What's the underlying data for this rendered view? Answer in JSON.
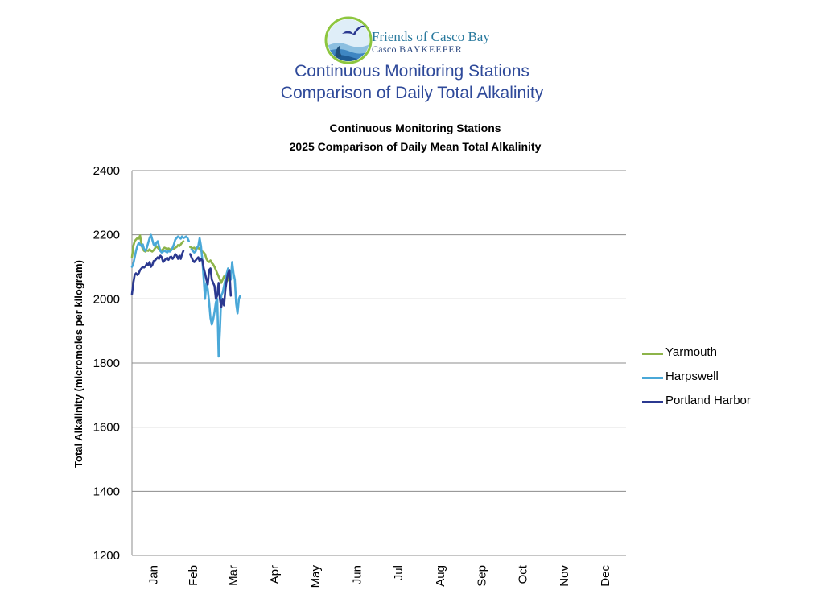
{
  "header": {
    "logo": {
      "name": "Friends of Casco Bay",
      "sub_prefix": "Casco ",
      "sub_emphasis": "BAYKEEPER",
      "ring_color": "#8dc63f"
    },
    "title_line1": "Continuous Monitoring Stations",
    "title_line2": "Comparison of Daily Total Alkalinity"
  },
  "chart_data": {
    "type": "line",
    "title_line1": "Continuous Monitoring Stations",
    "title_line2": "2025 Comparison of Daily Mean Total Alkalinity",
    "xlabel": "",
    "ylabel": "Total Alkalinity (micromoles per kilogram)",
    "ylim": [
      1200,
      2400
    ],
    "yticks": [
      1200,
      1400,
      1600,
      1800,
      2000,
      2200,
      2400
    ],
    "xlim": [
      1,
      366
    ],
    "month_labels": [
      "Jan",
      "Feb",
      "Mar",
      "Apr",
      "May",
      "Jun",
      "Jul",
      "Aug",
      "Sep",
      "Oct",
      "Nov",
      "Dec"
    ],
    "grid": "horizontal",
    "legend_position": "right",
    "series": [
      {
        "name": "Yarmouth",
        "color": "#8db44a",
        "segments": [
          [
            [
              1,
              2130
            ],
            [
              2,
              2165
            ],
            [
              3,
              2180
            ],
            [
              4,
              2185
            ],
            [
              5,
              2190
            ],
            [
              6,
              2188
            ],
            [
              7,
              2198
            ],
            [
              8,
              2170
            ],
            [
              9,
              2155
            ],
            [
              10,
              2150
            ],
            [
              11,
              2148
            ],
            [
              12,
              2152
            ],
            [
              13,
              2150
            ],
            [
              14,
              2155
            ],
            [
              15,
              2150
            ],
            [
              16,
              2148
            ],
            [
              17,
              2152
            ],
            [
              18,
              2158
            ],
            [
              19,
              2165
            ],
            [
              20,
              2160
            ],
            [
              21,
              2155
            ],
            [
              22,
              2150
            ],
            [
              23,
              2152
            ],
            [
              24,
              2156
            ],
            [
              25,
              2160
            ],
            [
              26,
              2158
            ],
            [
              27,
              2155
            ],
            [
              28,
              2158
            ],
            [
              29,
              2155
            ],
            [
              30,
              2152
            ],
            [
              31,
              2158
            ],
            [
              32,
              2155
            ],
            [
              33,
              2160
            ],
            [
              34,
              2162
            ],
            [
              35,
              2168
            ],
            [
              36,
              2165
            ],
            [
              37,
              2170
            ],
            [
              38,
              2175
            ],
            [
              39,
              2180
            ]
          ],
          [
            [
              44,
              2162
            ],
            [
              45,
              2160
            ],
            [
              46,
              2158
            ],
            [
              47,
              2160
            ],
            [
              48,
              2155
            ],
            [
              49,
              2158
            ],
            [
              50,
              2160
            ],
            [
              51,
              2155
            ],
            [
              52,
              2150
            ],
            [
              53,
              2148
            ],
            [
              54,
              2145
            ],
            [
              55,
              2140
            ],
            [
              56,
              2125
            ],
            [
              57,
              2118
            ],
            [
              58,
              2115
            ],
            [
              59,
              2120
            ],
            [
              60,
              2112
            ],
            [
              61,
              2108
            ],
            [
              62,
              2100
            ],
            [
              63,
              2090
            ],
            [
              64,
              2080
            ],
            [
              65,
              2070
            ],
            [
              66,
              2060
            ],
            [
              67,
              2050
            ],
            [
              68,
              2060
            ],
            [
              69,
              2070
            ],
            [
              70,
              2065
            ],
            [
              71,
              2055
            ],
            [
              72,
              2060
            ],
            [
              73,
              2070
            ]
          ]
        ]
      },
      {
        "name": "Harpswell",
        "color": "#4aa8d8",
        "segments": [
          [
            [
              1,
              2100
            ],
            [
              2,
              2110
            ],
            [
              3,
              2130
            ],
            [
              4,
              2150
            ],
            [
              5,
              2165
            ],
            [
              6,
              2175
            ],
            [
              7,
              2170
            ],
            [
              8,
              2165
            ],
            [
              9,
              2170
            ],
            [
              10,
              2155
            ],
            [
              11,
              2150
            ],
            [
              12,
              2160
            ],
            [
              13,
              2175
            ],
            [
              14,
              2190
            ],
            [
              15,
              2200
            ],
            [
              16,
              2185
            ],
            [
              17,
              2170
            ],
            [
              18,
              2165
            ],
            [
              19,
              2175
            ],
            [
              20,
              2180
            ],
            [
              21,
              2165
            ],
            [
              22,
              2150
            ],
            [
              23,
              2145
            ],
            [
              24,
              2148
            ],
            [
              25,
              2150
            ],
            [
              26,
              2148
            ],
            [
              27,
              2145
            ],
            [
              28,
              2150
            ],
            [
              29,
              2148
            ],
            [
              30,
              2152
            ],
            [
              31,
              2160
            ],
            [
              32,
              2170
            ],
            [
              33,
              2185
            ],
            [
              34,
              2190
            ],
            [
              35,
              2195
            ],
            [
              36,
              2192
            ],
            [
              37,
              2188
            ],
            [
              38,
              2195
            ],
            [
              39,
              2190
            ],
            [
              40,
              2192
            ],
            [
              41,
              2195
            ],
            [
              42,
              2190
            ],
            [
              43,
              2180
            ]
          ],
          [
            [
              45,
              2155
            ],
            [
              46,
              2150
            ],
            [
              47,
              2145
            ],
            [
              48,
              2148
            ],
            [
              49,
              2160
            ],
            [
              50,
              2165
            ],
            [
              51,
              2190
            ],
            [
              52,
              2165
            ],
            [
              53,
              2120
            ],
            [
              54,
              2060
            ],
            [
              55,
              2000
            ],
            [
              56,
              2050
            ],
            [
              57,
              2030
            ],
            [
              58,
              1990
            ],
            [
              59,
              1940
            ],
            [
              60,
              1920
            ],
            [
              61,
              1935
            ],
            [
              62,
              1960
            ],
            [
              63,
              1990
            ],
            [
              64,
              2000
            ],
            [
              65,
              1820
            ],
            [
              66,
              1900
            ],
            [
              67,
              2010
            ],
            [
              68,
              2020
            ],
            [
              69,
              2040
            ],
            [
              70,
              2060
            ],
            [
              71,
              2080
            ],
            [
              72,
              2095
            ],
            [
              73,
              2080
            ],
            [
              74,
              2060
            ],
            [
              75,
              2115
            ],
            [
              76,
              2080
            ],
            [
              77,
              2060
            ],
            [
              78,
              1985
            ],
            [
              79,
              1955
            ],
            [
              80,
              2000
            ],
            [
              81,
              2010
            ]
          ]
        ]
      },
      {
        "name": "Portland Harbor",
        "color": "#2b3990",
        "segments": [
          [
            [
              1,
              2015
            ],
            [
              2,
              2050
            ],
            [
              3,
              2075
            ],
            [
              4,
              2080
            ],
            [
              5,
              2075
            ],
            [
              6,
              2080
            ],
            [
              7,
              2090
            ],
            [
              8,
              2095
            ],
            [
              9,
              2100
            ],
            [
              10,
              2098
            ],
            [
              11,
              2102
            ],
            [
              12,
              2110
            ],
            [
              13,
              2105
            ],
            [
              14,
              2115
            ],
            [
              15,
              2100
            ],
            [
              16,
              2105
            ],
            [
              17,
              2118
            ],
            [
              18,
              2120
            ],
            [
              19,
              2125
            ],
            [
              20,
              2130
            ],
            [
              21,
              2125
            ],
            [
              22,
              2135
            ],
            [
              23,
              2130
            ],
            [
              24,
              2115
            ],
            [
              25,
              2120
            ],
            [
              26,
              2125
            ],
            [
              27,
              2128
            ],
            [
              28,
              2122
            ],
            [
              29,
              2130
            ],
            [
              30,
              2132
            ],
            [
              31,
              2125
            ],
            [
              32,
              2130
            ],
            [
              33,
              2140
            ],
            [
              34,
              2135
            ],
            [
              35,
              2125
            ],
            [
              36,
              2135
            ],
            [
              37,
              2125
            ],
            [
              38,
              2140
            ],
            [
              39,
              2150
            ]
          ],
          [
            [
              44,
              2140
            ],
            [
              45,
              2130
            ],
            [
              46,
              2120
            ],
            [
              47,
              2115
            ],
            [
              48,
              2120
            ],
            [
              49,
              2125
            ],
            [
              50,
              2130
            ],
            [
              51,
              2118
            ],
            [
              52,
              2125
            ],
            [
              53,
              2120
            ],
            [
              54,
              2095
            ],
            [
              55,
              2080
            ],
            [
              56,
              2060
            ],
            [
              57,
              2045
            ],
            [
              58,
              2090
            ],
            [
              59,
              2095
            ],
            [
              60,
              2060
            ],
            [
              61,
              2050
            ],
            [
              62,
              2040
            ],
            [
              63,
              2000
            ],
            [
              64,
              2010
            ],
            [
              65,
              2050
            ],
            [
              66,
              2000
            ],
            [
              67,
              1975
            ],
            [
              68,
              2000
            ],
            [
              69,
              1980
            ],
            [
              70,
              2030
            ],
            [
              71,
              2060
            ],
            [
              72,
              2080
            ],
            [
              73,
              2090
            ],
            [
              74,
              2010
            ]
          ]
        ]
      }
    ]
  }
}
